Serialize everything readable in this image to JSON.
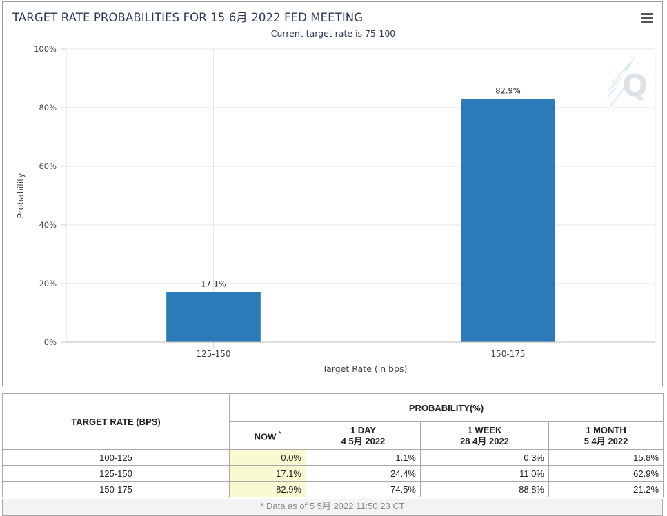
{
  "chart_data": {
    "type": "bar",
    "title": "TARGET RATE PROBABILITIES FOR 15 6月 2022 FED MEETING",
    "subtitle": "Current target rate is 75-100",
    "categories": [
      "125-150",
      "150-175"
    ],
    "values": [
      17.1,
      82.9
    ],
    "data_labels": [
      "17.1%",
      "82.9%"
    ],
    "xlabel": "Target Rate (in bps)",
    "ylabel": "Probability",
    "ylim": [
      0,
      100
    ],
    "yticks": [
      "0%",
      "20%",
      "40%",
      "60%",
      "80%",
      "100%"
    ],
    "grid": true,
    "legend": "none",
    "bar_color": "#2b7bb9"
  },
  "table": {
    "rate_header": "TARGET RATE (BPS)",
    "prob_header": "PROBABILITY(%)",
    "columns": [
      {
        "line1": "NOW",
        "line2": "",
        "star": "*"
      },
      {
        "line1": "1 DAY",
        "line2": "4 5月 2022",
        "star": ""
      },
      {
        "line1": "1 WEEK",
        "line2": "28 4月 2022",
        "star": ""
      },
      {
        "line1": "1 MONTH",
        "line2": "5 4月 2022",
        "star": ""
      }
    ],
    "rows": [
      {
        "rate": "100-125",
        "values": [
          "0.0%",
          "1.1%",
          "0.3%",
          "15.8%"
        ]
      },
      {
        "rate": "125-150",
        "values": [
          "17.1%",
          "24.4%",
          "11.0%",
          "62.9%"
        ]
      },
      {
        "rate": "150-175",
        "values": [
          "82.9%",
          "74.5%",
          "88.8%",
          "21.2%"
        ]
      }
    ],
    "footnote": "* Data as of 5 5月 2022 11:50:23 CT"
  },
  "icons": {
    "menu": "hamburger-menu-icon",
    "watermark": "quikstrike-q-logo"
  }
}
